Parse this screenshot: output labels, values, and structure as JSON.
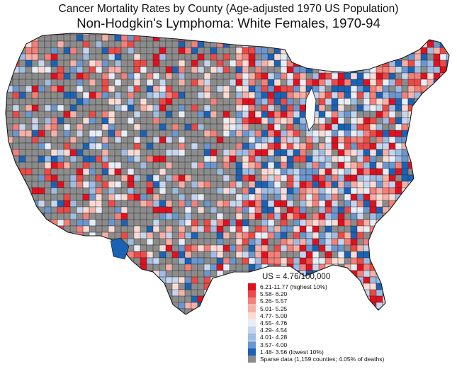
{
  "title_line1": "Cancer Mortality Rates by County (Age-adjusted 1970 US Population)",
  "title_line2": "Non-Hodgkin's Lymphoma:  White Females, 1970-94",
  "legend": {
    "us_rate": "US = 4.76/100,000",
    "items": [
      {
        "label": "6.21-11.77 (highest 10%)",
        "color": "#e0101f"
      },
      {
        "label": "5.58- 6.20",
        "color": "#ec4a47"
      },
      {
        "label": "5.26- 5.57",
        "color": "#f3807a"
      },
      {
        "label": "5.01- 5.25",
        "color": "#f7b0a6"
      },
      {
        "label": "4.77- 5.00",
        "color": "#fbdcd4"
      },
      {
        "label": "4.55- 4.76",
        "color": "#e8eef8"
      },
      {
        "label": "4.29- 4.54",
        "color": "#c6d6ee"
      },
      {
        "label": "4.01- 4.28",
        "color": "#9fbce2"
      },
      {
        "label": "3.57- 4.00",
        "color": "#6b97cf"
      },
      {
        "label": "1.48- 3.56 (lowest 10%)",
        "color": "#1a62b4"
      },
      {
        "label": "Sparse data (1,159 counties; 4.05% of deaths)",
        "color": "#8c8c8c"
      }
    ]
  }
}
